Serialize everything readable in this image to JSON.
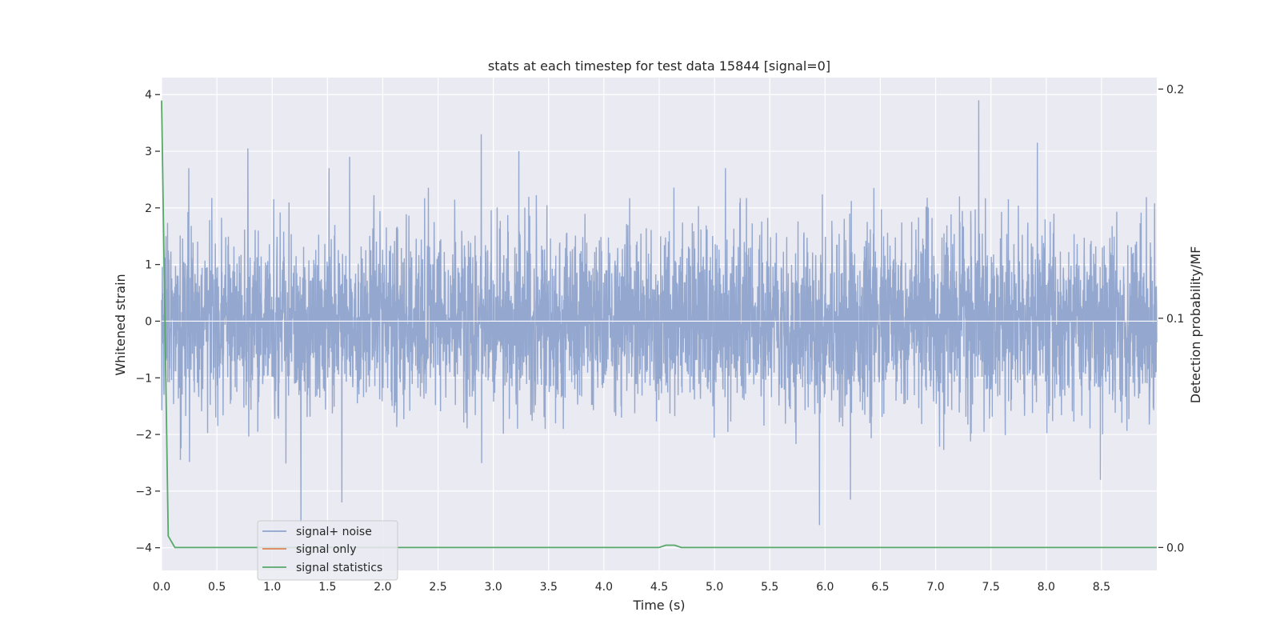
{
  "chart_data": {
    "type": "line",
    "title": "stats at each timestep for test data 15844 [signal=0]",
    "xlabel": "Time (s)",
    "ylabel_left": "Whitened strain",
    "ylabel_right": "Detection probability/MF",
    "xlim": [
      0.0,
      9.0
    ],
    "ylim_left": [
      -4.4,
      4.3
    ],
    "ylim_right": [
      -0.01,
      0.205
    ],
    "x_ticks": [
      "0.0",
      "0.5",
      "1.0",
      "1.5",
      "2.0",
      "2.5",
      "3.0",
      "3.5",
      "4.0",
      "4.5",
      "5.0",
      "5.5",
      "6.0",
      "6.5",
      "7.0",
      "7.5",
      "8.0",
      "8.5"
    ],
    "y_ticks_left": [
      "−4",
      "−3",
      "−2",
      "−1",
      "0",
      "1",
      "2",
      "3",
      "4"
    ],
    "y_ticks_right": [
      "0.0",
      "0.1",
      "0.2"
    ],
    "grid": true,
    "legend_location": "lower-left",
    "series": [
      {
        "name": "signal+ noise",
        "axis": "left",
        "color": "#8ea3cc",
        "description_x_range": [
          0.0,
          9.0
        ],
        "peaks": [
          {
            "x": 0.04,
            "y": 1.5
          },
          {
            "x": 0.78,
            "y": 3.05
          },
          {
            "x": 1.26,
            "y": -3.55
          },
          {
            "x": 1.63,
            "y": -3.2
          },
          {
            "x": 1.7,
            "y": 2.9
          },
          {
            "x": 2.89,
            "y": 3.3
          },
          {
            "x": 3.23,
            "y": 3.0
          },
          {
            "x": 5.95,
            "y": -3.6
          },
          {
            "x": 6.23,
            "y": -3.15
          },
          {
            "x": 7.39,
            "y": 3.9
          },
          {
            "x": 7.92,
            "y": 3.15
          },
          {
            "x": 8.49,
            "y": -2.8
          }
        ]
      },
      {
        "name": "signal only",
        "axis": "left",
        "color": "#dd8452",
        "values": []
      },
      {
        "name": "signal statistics",
        "axis": "right",
        "color": "#55a868",
        "x": [
          0.0,
          0.06,
          0.12,
          0.5,
          1.0,
          2.0,
          3.0,
          4.0,
          4.5,
          4.56,
          4.64,
          4.7,
          5.0,
          6.0,
          7.0,
          8.0,
          9.0
        ],
        "y": [
          0.195,
          0.005,
          0.0,
          0.0,
          0.0,
          0.0,
          0.0,
          0.0,
          0.0,
          0.001,
          0.001,
          0.0,
          0.0,
          0.0,
          0.0,
          0.0,
          0.0
        ]
      }
    ],
    "colors": {
      "plot_background": "#eaeaf2",
      "grid": "#ffffff"
    }
  }
}
